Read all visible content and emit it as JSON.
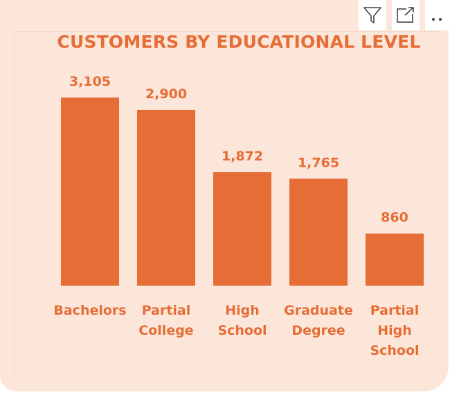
{
  "header": {
    "icons": [
      "filter-icon",
      "focus-mode-icon",
      "more-options-icon"
    ]
  },
  "colors": {
    "card_background": "#fce6da",
    "bar": "#e66d36",
    "text": "#e66d36"
  },
  "chart_data": {
    "type": "bar",
    "title": "CUSTOMERS BY EDUCATIONAL LEVEL",
    "categories": [
      "Bachelors",
      "Partial College",
      "High School",
      "Graduate Degree",
      "Partial High School"
    ],
    "category_lines": [
      [
        "Bachelors"
      ],
      [
        "Partial",
        "College"
      ],
      [
        "High",
        "School"
      ],
      [
        "Graduate",
        "Degree"
      ],
      [
        "Partial",
        "High",
        "School"
      ]
    ],
    "values": [
      3105,
      2900,
      1872,
      1765,
      860
    ],
    "value_labels": [
      "3,105",
      "2,900",
      "1,872",
      "1,765",
      "860"
    ],
    "xlabel": "",
    "ylabel": "",
    "ylim": [
      0,
      3105
    ],
    "grid": false,
    "legend": "none"
  }
}
